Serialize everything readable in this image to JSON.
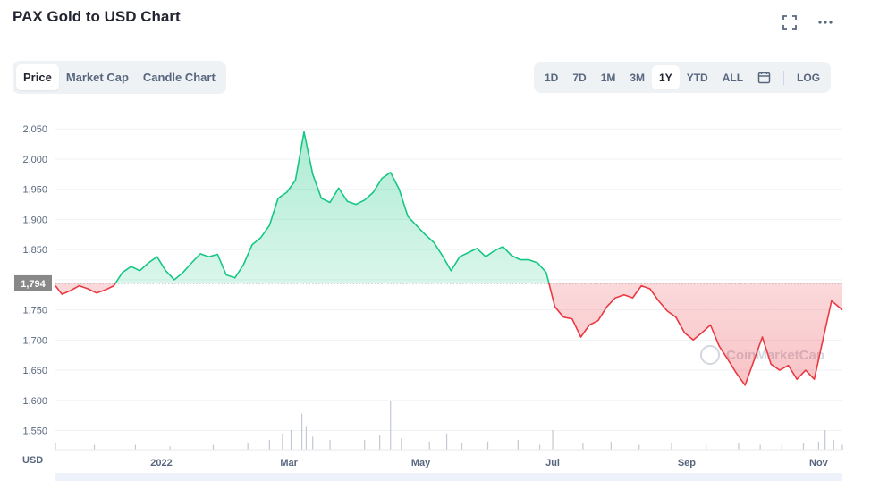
{
  "header": {
    "title": "PAX Gold to USD Chart"
  },
  "icons": {
    "fullscreen": "fullscreen-icon",
    "more": "more-icon",
    "calendar": "calendar-icon"
  },
  "tabs": [
    {
      "label": "Price",
      "active": true
    },
    {
      "label": "Market Cap",
      "active": false
    },
    {
      "label": "Candle Chart",
      "active": false
    }
  ],
  "ranges": [
    {
      "label": "1D",
      "active": false
    },
    {
      "label": "7D",
      "active": false
    },
    {
      "label": "1M",
      "active": false
    },
    {
      "label": "3M",
      "active": false
    },
    {
      "label": "1Y",
      "active": true
    },
    {
      "label": "YTD",
      "active": false
    },
    {
      "label": "ALL",
      "active": false
    }
  ],
  "log_label": "LOG",
  "currency_label": "USD",
  "watermark": "CoinMarketCap",
  "colors": {
    "up": "#16c784",
    "down": "#ea3943",
    "baseline": "#888888",
    "grid": "#eff2f5",
    "axis_text": "#58667e"
  },
  "chart_data": {
    "type": "area",
    "title": "PAX Gold to USD Chart",
    "ylabel": "USD",
    "ylim": [
      1530,
      2080
    ],
    "yticks": [
      1550,
      1600,
      1650,
      1700,
      1750,
      1800,
      1850,
      1900,
      1950,
      2000,
      2050
    ],
    "ytick_labels": [
      "1,550",
      "1,600",
      "1,650",
      "1,700",
      "1,750",
      "",
      "1,850",
      "1,900",
      "1,950",
      "2,000",
      "2,050"
    ],
    "baseline": 1794,
    "baseline_label": "1,794",
    "xrange": [
      "2021-11-13",
      "2022-11-12"
    ],
    "xticks": [
      {
        "date": "2022-01-01",
        "label": "2022"
      },
      {
        "date": "2022-03-01",
        "label": "Mar"
      },
      {
        "date": "2022-05-01",
        "label": "May"
      },
      {
        "date": "2022-07-01",
        "label": "Jul"
      },
      {
        "date": "2022-09-01",
        "label": "Sep"
      },
      {
        "date": "2022-11-01",
        "label": "Nov"
      }
    ],
    "grid": true,
    "series": [
      {
        "x": [
          "2021-11-13",
          "2021-11-16",
          "2021-11-20",
          "2021-11-24",
          "2021-11-28",
          "2021-12-02",
          "2021-12-06",
          "2021-12-10",
          "2021-12-14",
          "2021-12-18",
          "2021-12-22",
          "2021-12-26",
          "2021-12-30",
          "2022-01-03",
          "2022-01-07",
          "2022-01-11",
          "2022-01-15",
          "2022-01-19",
          "2022-01-23",
          "2022-01-27",
          "2022-01-31",
          "2022-02-04",
          "2022-02-08",
          "2022-02-12",
          "2022-02-16",
          "2022-02-20",
          "2022-02-24",
          "2022-02-28",
          "2022-03-04",
          "2022-03-08",
          "2022-03-12",
          "2022-03-16",
          "2022-03-20",
          "2022-03-24",
          "2022-03-28",
          "2022-04-01",
          "2022-04-05",
          "2022-04-09",
          "2022-04-13",
          "2022-04-17",
          "2022-04-21",
          "2022-04-25",
          "2022-04-29",
          "2022-05-03",
          "2022-05-07",
          "2022-05-11",
          "2022-05-15",
          "2022-05-19",
          "2022-05-23",
          "2022-05-27",
          "2022-05-31",
          "2022-06-04",
          "2022-06-08",
          "2022-06-12",
          "2022-06-16",
          "2022-06-20",
          "2022-06-24",
          "2022-06-28",
          "2022-07-02",
          "2022-07-06",
          "2022-07-10",
          "2022-07-14",
          "2022-07-18",
          "2022-07-22",
          "2022-07-26",
          "2022-07-30",
          "2022-08-03",
          "2022-08-07",
          "2022-08-11",
          "2022-08-15",
          "2022-08-19",
          "2022-08-23",
          "2022-08-27",
          "2022-08-31",
          "2022-09-04",
          "2022-09-08",
          "2022-09-12",
          "2022-09-16",
          "2022-09-20",
          "2022-09-24",
          "2022-09-28",
          "2022-10-02",
          "2022-10-06",
          "2022-10-10",
          "2022-10-14",
          "2022-10-18",
          "2022-10-22",
          "2022-10-26",
          "2022-10-30",
          "2022-11-03",
          "2022-11-07",
          "2022-11-12"
        ],
        "y": [
          1790,
          1776,
          1782,
          1790,
          1785,
          1778,
          1783,
          1790,
          1812,
          1822,
          1815,
          1828,
          1838,
          1815,
          1800,
          1812,
          1828,
          1843,
          1838,
          1842,
          1808,
          1803,
          1825,
          1858,
          1870,
          1890,
          1935,
          1945,
          1965,
          2045,
          1975,
          1935,
          1928,
          1952,
          1930,
          1925,
          1932,
          1945,
          1968,
          1978,
          1950,
          1905,
          1890,
          1875,
          1862,
          1840,
          1815,
          1838,
          1845,
          1852,
          1838,
          1848,
          1855,
          1840,
          1833,
          1833,
          1828,
          1812,
          1755,
          1738,
          1735,
          1705,
          1725,
          1732,
          1755,
          1770,
          1775,
          1770,
          1790,
          1785,
          1765,
          1748,
          1738,
          1712,
          1700,
          1712,
          1725,
          1690,
          1668,
          1645,
          1625,
          1665,
          1705,
          1660,
          1650,
          1658,
          1635,
          1650,
          1635,
          1700,
          1765,
          1750
        ]
      }
    ],
    "volume": {
      "x": [
        "2021-11-13",
        "2021-12-01",
        "2021-12-20",
        "2022-01-05",
        "2022-01-25",
        "2022-02-10",
        "2022-02-20",
        "2022-02-26",
        "2022-03-02",
        "2022-03-07",
        "2022-03-09",
        "2022-03-12",
        "2022-03-20",
        "2022-04-05",
        "2022-04-12",
        "2022-04-17",
        "2022-04-22",
        "2022-05-05",
        "2022-05-13",
        "2022-05-20",
        "2022-06-01",
        "2022-06-15",
        "2022-06-25",
        "2022-07-01",
        "2022-07-15",
        "2022-07-28",
        "2022-08-10",
        "2022-08-25",
        "2022-09-10",
        "2022-09-25",
        "2022-10-05",
        "2022-10-15",
        "2022-10-25",
        "2022-11-01",
        "2022-11-04",
        "2022-11-08",
        "2022-11-12"
      ],
      "values": [
        4,
        3,
        3,
        2,
        3,
        4,
        6,
        10,
        12,
        22,
        14,
        8,
        6,
        6,
        9,
        30,
        7,
        5,
        10,
        4,
        5,
        6,
        3,
        12,
        4,
        5,
        3,
        4,
        3,
        4,
        3,
        3,
        4,
        5,
        12,
        6,
        3
      ]
    }
  }
}
